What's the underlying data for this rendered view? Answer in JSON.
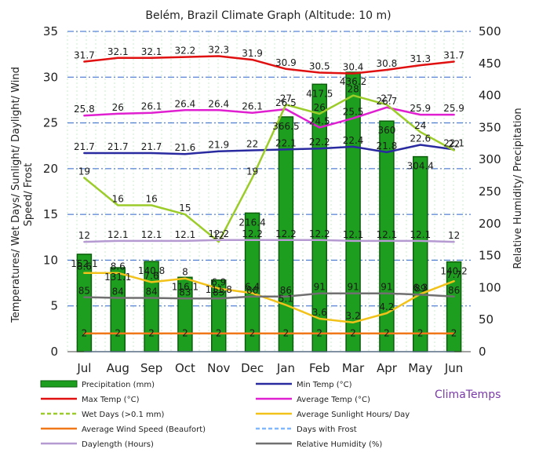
{
  "chart_data": {
    "type": "bar",
    "title": "Belém, Brazil Climate Graph (Altitude: 10 m)",
    "ylabel": "Temperatures/ Wet Days/ Sunlight/ Daylight/ Wind Speed/ Frost",
    "y2label": "Relative Humidity/ Precipitation",
    "ylim": [
      0,
      35
    ],
    "y2lim": [
      0,
      500
    ],
    "yticks": [
      0,
      5,
      10,
      15,
      20,
      25,
      30,
      35
    ],
    "y2ticks": [
      0,
      50,
      100,
      150,
      200,
      250,
      300,
      350,
      400,
      450,
      500
    ],
    "categories": [
      "Jul",
      "Aug",
      "Sep",
      "Oct",
      "Nov",
      "Dec",
      "Jan",
      "Feb",
      "Mar",
      "Apr",
      "May",
      "Jun"
    ],
    "grid": true,
    "legend_position": "bottom",
    "brand": "ClimaTemps",
    "precipitation": {
      "name": "Precipitation (mm)",
      "color": "#1e9e1e",
      "axis": "right",
      "values": [
        152.1,
        131.1,
        140.8,
        116.1,
        111.8,
        216.4,
        366.5,
        417.5,
        436.2,
        360.0,
        304.4,
        140.2
      ]
    },
    "series": [
      {
        "key": "max",
        "name": "Max Temp (°C)",
        "color": "#e01010",
        "axis": "left",
        "values": [
          31.7,
          32.1,
          32.1,
          32.2,
          32.3,
          31.9,
          30.9,
          30.5,
          30.4,
          30.8,
          31.3,
          31.7
        ]
      },
      {
        "key": "avg",
        "name": "Average Temp (°C)",
        "color": "#e020d0",
        "axis": "left",
        "values": [
          25.8,
          26,
          26.1,
          26.4,
          26.4,
          26.1,
          26.5,
          24.5,
          25.5,
          26.7,
          25.9,
          25.9
        ]
      },
      {
        "key": "min",
        "name": "Min Temp (°C)",
        "color": "#2a2aa0",
        "axis": "left",
        "values": [
          21.7,
          21.7,
          21.7,
          21.6,
          21.9,
          22,
          22.1,
          22.2,
          22.4,
          21.8,
          22.6,
          22.1
        ]
      },
      {
        "key": "wet",
        "name": "Wet Days (>0.1 mm)",
        "color": "#9ccc2a",
        "axis": "left",
        "values": [
          19,
          16,
          16,
          15,
          12,
          19,
          27,
          26,
          28,
          27,
          24,
          22
        ]
      },
      {
        "key": "sun",
        "name": "Average Sunlight Hours/ Day",
        "color": "#f2c21a",
        "axis": "left",
        "values": [
          8.6,
          8.6,
          7.6,
          8.0,
          6.9,
          6.4,
          5.1,
          3.6,
          3.2,
          4.2,
          6.3,
          7.7
        ]
      },
      {
        "key": "day",
        "name": "Daylength (Hours)",
        "color": "#b59ad2",
        "axis": "left",
        "values": [
          12.0,
          12.1,
          12.1,
          12.1,
          12.2,
          12.2,
          12.2,
          12.2,
          12.1,
          12.1,
          12.1,
          12.0
        ]
      },
      {
        "key": "rh",
        "name": "Relative Humidity (%)",
        "color": "#707070",
        "axis": "right",
        "values": [
          85,
          84,
          84,
          83,
          83,
          86,
          86,
          91,
          91,
          91,
          89,
          86
        ]
      },
      {
        "key": "wind",
        "name": "Average Wind Speed (Beaufort)",
        "color": "#f07818",
        "axis": "left",
        "values": [
          2,
          2,
          2,
          2,
          2,
          2,
          2,
          2,
          2,
          2,
          2,
          2
        ]
      },
      {
        "key": "frost",
        "name": "Days with Frost",
        "color": "#7fb8ff",
        "axis": "left",
        "values": [
          0,
          0,
          0,
          0,
          0,
          0,
          0,
          0,
          0,
          0,
          0,
          0
        ]
      }
    ],
    "legend": [
      [
        "Precipitation (mm)",
        "Min Temp (°C)"
      ],
      [
        "Max Temp (°C)",
        "Average Temp (°C)"
      ],
      [
        "Wet Days (>0.1 mm)",
        "Average Sunlight Hours/ Day"
      ],
      [
        "Average Wind Speed (Beaufort)",
        "Days with Frost"
      ],
      [
        "Daylength (Hours)",
        "Relative Humidity (%)"
      ]
    ]
  }
}
